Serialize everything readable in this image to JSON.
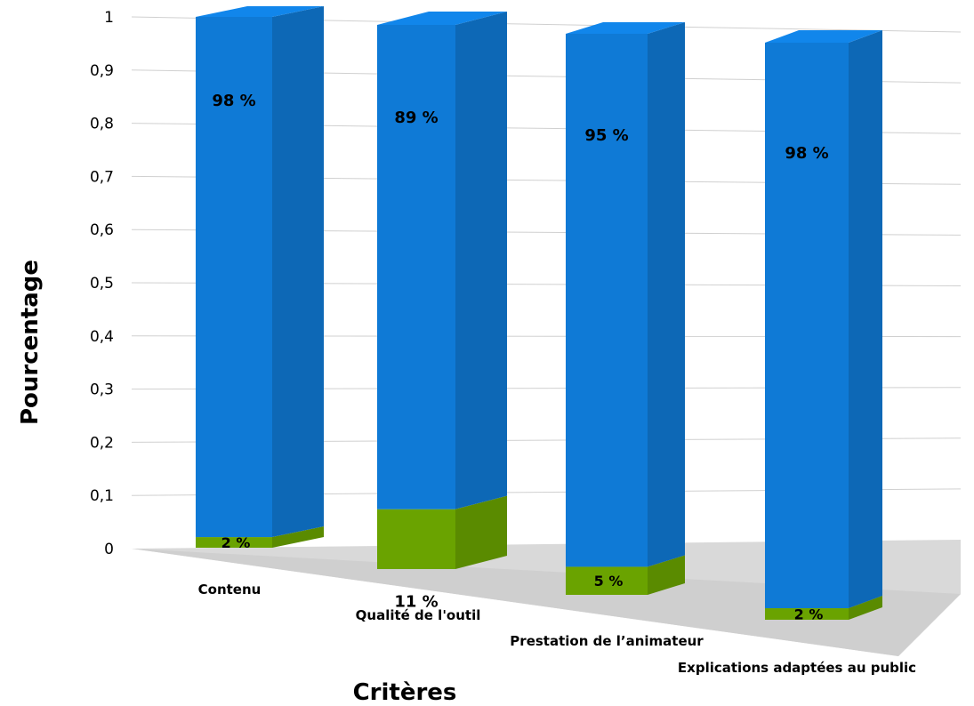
{
  "chart_data": {
    "type": "bar",
    "stacked": true,
    "three_d": true,
    "categories": [
      "Contenu",
      "Qualité de l'outil",
      "Prestation de l’animateur",
      "Explications adaptées au public"
    ],
    "series": [
      {
        "values": [
          0.02,
          0.11,
          0.05,
          0.02
        ],
        "labels": [
          "2 %",
          "11 %",
          "5 %",
          "2 %"
        ],
        "color": "#6aa300"
      },
      {
        "values": [
          0.98,
          0.89,
          0.95,
          0.98
        ],
        "labels": [
          "98 %",
          "89 %",
          "95 %",
          "98 %"
        ],
        "color": "#0f7ad6"
      }
    ],
    "yticks": [
      "0",
      "0,1",
      "0,2",
      "0,3",
      "0,4",
      "0,5",
      "0,6",
      "0,7",
      "0,8",
      "0,9",
      "1"
    ],
    "ylim": [
      0,
      1
    ],
    "xlabel": "Critères",
    "ylabel": "Pourcentage",
    "grid": true,
    "legend": "none",
    "floor_color": "#d9d9d9",
    "grid_color": "#d0d0d0"
  }
}
